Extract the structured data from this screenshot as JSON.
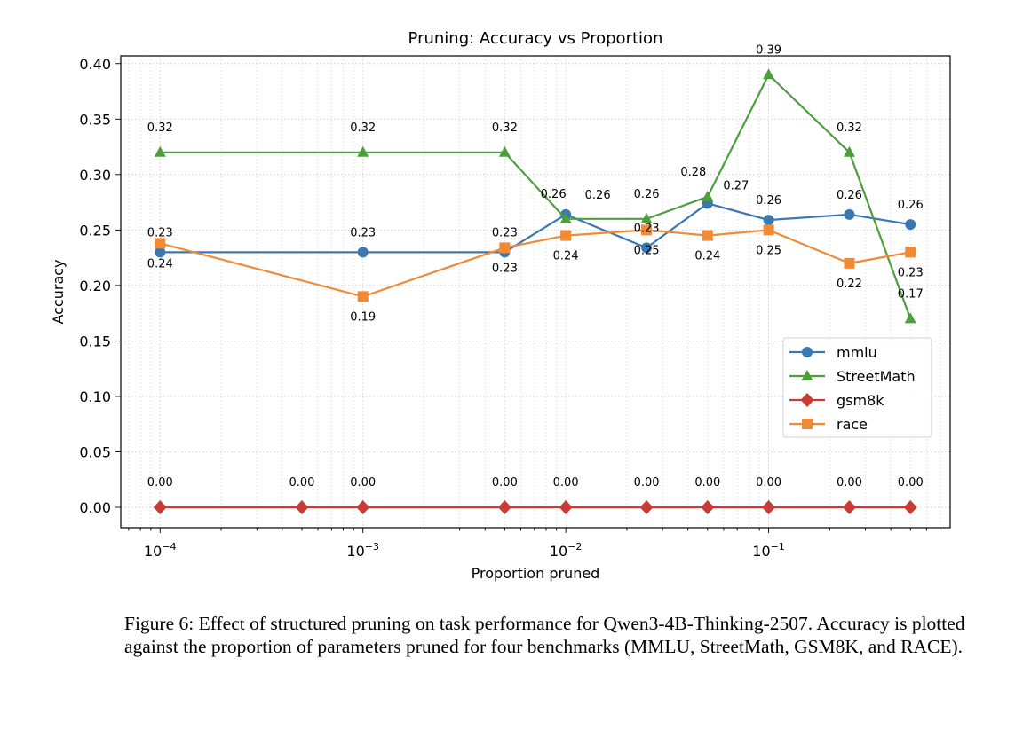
{
  "chart_data": {
    "type": "line",
    "title": "Pruning: Accuracy vs Proportion",
    "xlabel": "Proportion pruned",
    "ylabel": "Accuracy",
    "xscale": "log",
    "xlim": [
      6.4e-05,
      0.785
    ],
    "ylim": [
      -0.0184,
      0.407
    ],
    "xticks": [
      0.0001,
      0.001,
      0.01,
      0.1
    ],
    "xtick_labels": [
      [
        "10",
        "−4"
      ],
      [
        "10",
        "−3"
      ],
      [
        "10",
        "−2"
      ],
      [
        "10",
        "−1"
      ]
    ],
    "yticks": [
      0,
      0.05,
      0.1,
      0.15,
      0.2,
      0.25,
      0.3,
      0.35,
      0.4
    ],
    "ytick_labels": [
      "0.00",
      "0.05",
      "0.10",
      "0.15",
      "0.20",
      "0.25",
      "0.30",
      "0.35",
      "0.40"
    ],
    "grid": true,
    "legend_position": "center-right",
    "series": [
      {
        "name": "mmlu",
        "color": "#3a78b4",
        "marker": "circle",
        "x": [
          0.0001,
          0.001,
          0.005,
          0.01,
          0.025,
          0.05,
          0.1,
          0.25,
          0.5
        ],
        "y": [
          0.23,
          0.23,
          0.23,
          0.264,
          0.234,
          0.274,
          0.259,
          0.264,
          0.255
        ],
        "labels": [
          "0.23",
          "0.23",
          "0.23",
          "0.26",
          "0.23",
          "0.27",
          "0.26",
          "0.26",
          "0.26"
        ],
        "label_side": "above"
      },
      {
        "name": "StreetMath",
        "color": "#4c9f3b",
        "marker": "triangle",
        "x": [
          0.0001,
          0.001,
          0.005,
          0.01,
          0.025,
          0.05,
          0.1,
          0.25,
          0.5
        ],
        "y": [
          0.32,
          0.32,
          0.32,
          0.26,
          0.26,
          0.28,
          0.39,
          0.32,
          0.17
        ],
        "labels": [
          "0.32",
          "0.32",
          "0.32",
          "0.26",
          "0.26",
          "0.28",
          "0.39",
          "0.32",
          "0.17"
        ],
        "label_side": "above"
      },
      {
        "name": "gsm8k",
        "color": "#c83c35",
        "marker": "diamond",
        "x": [
          0.0001,
          0.0005,
          0.001,
          0.005,
          0.01,
          0.025,
          0.05,
          0.1,
          0.25,
          0.5
        ],
        "y": [
          0,
          0,
          0,
          0,
          0,
          0,
          0,
          0,
          0,
          0
        ],
        "labels": [
          "0.00",
          "0.00",
          "0.00",
          "0.00",
          "0.00",
          "0.00",
          "0.00",
          "0.00",
          "0.00",
          "0.00"
        ],
        "label_side": "above"
      },
      {
        "name": "race",
        "color": "#f08a35",
        "marker": "square",
        "x": [
          0.0001,
          0.001,
          0.005,
          0.01,
          0.025,
          0.05,
          0.1,
          0.25,
          0.5
        ],
        "y": [
          0.238,
          0.19,
          0.234,
          0.245,
          0.25,
          0.245,
          0.25,
          0.22,
          0.23
        ],
        "labels": [
          "0.24",
          "0.19",
          "0.23",
          "0.24",
          "0.25",
          "0.24",
          "0.25",
          "0.22",
          "0.23"
        ],
        "label_side": "below"
      }
    ]
  },
  "caption": "Figure 6: Effect of structured pruning on task performance for Qwen3-4B-Thinking-2507. Accuracy is plotted against the proportion of parameters pruned for four benchmarks (MMLU, StreetMath, GSM8K, and RACE)."
}
